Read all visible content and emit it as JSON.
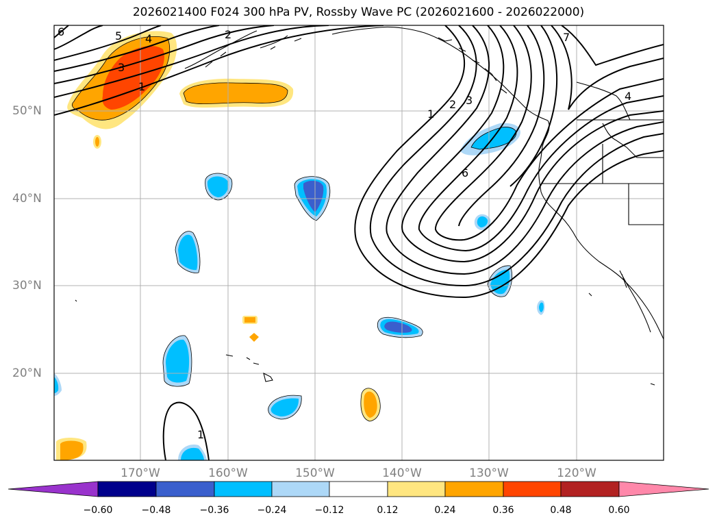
{
  "title": "2026021400 F024 300 hPa PV, Rossby Wave PC (2026021600 - 2026022000)",
  "latitude_labels": [
    "50°N",
    "40°N",
    "30°N",
    "20°N"
  ],
  "longitude_labels": [
    "170°W",
    "160°W",
    "150°W",
    "140°W",
    "130°W",
    "120°W"
  ],
  "contour_labels": [
    "6",
    "5",
    "4",
    "3",
    "1",
    "2",
    "7",
    "1",
    "2",
    "3",
    "4",
    "6",
    "1"
  ],
  "colorbar": {
    "ticks": [
      "−0.60",
      "−0.48",
      "−0.36",
      "−0.24",
      "−0.12",
      "0.12",
      "0.24",
      "0.36",
      "0.48",
      "0.60"
    ],
    "colors": [
      "#9933cc",
      "#00008b",
      "#3a5fcd",
      "#00bfff",
      "#add8f7",
      "#ffffff",
      "#ffe680",
      "#ffa500",
      "#ff4500",
      "#b22222",
      "#ff88aa"
    ]
  },
  "fill_colors": {
    "light_blue": "#add8f7",
    "cyan": "#00bfff",
    "royal_blue": "#3a5fcd",
    "light_orange": "#ffe680",
    "orange": "#ffa500",
    "red_orange": "#ff4500"
  }
}
